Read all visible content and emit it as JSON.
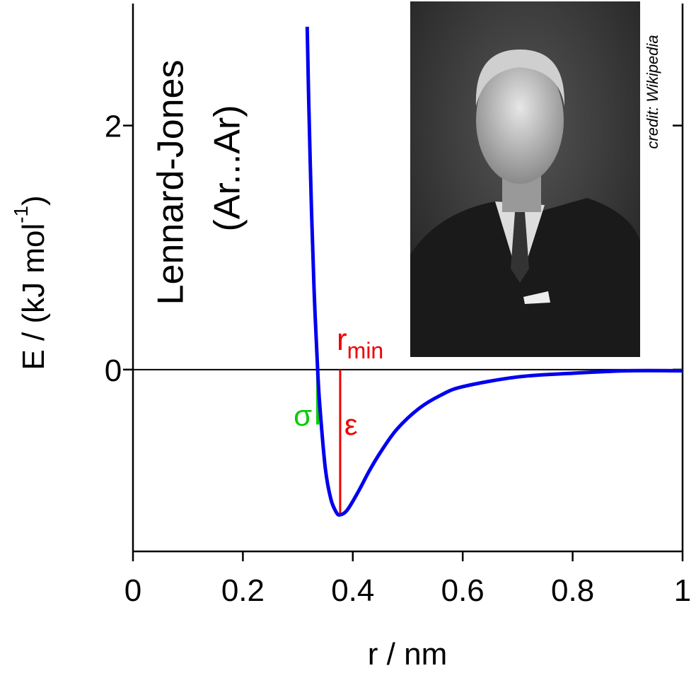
{
  "chart_data": {
    "type": "line",
    "title": [
      "Lennard-Jones",
      "(Ar...Ar)"
    ],
    "x_label": "r / nm",
    "y_label": {
      "text": "E / (kJ mol",
      "superscript": "-1",
      "close": ")"
    },
    "x": [
      0.317,
      0.32,
      0.325,
      0.33,
      0.336,
      0.34,
      0.35,
      0.36,
      0.37,
      0.377,
      0.39,
      0.41,
      0.43,
      0.45,
      0.48,
      0.52,
      0.56,
      0.6,
      0.7,
      0.8,
      0.9,
      1.0
    ],
    "values": [
      2.81,
      2.16,
      1.28,
      0.6,
      0,
      -0.3,
      -0.81,
      -1.06,
      -1.17,
      -1.19,
      -1.15,
      -1.0,
      -0.83,
      -0.68,
      -0.49,
      -0.32,
      -0.21,
      -0.14,
      -0.06,
      -0.03,
      -0.01,
      -0.01
    ],
    "color": "#0000ee",
    "xlim": [
      0,
      1
    ],
    "ylim": [
      -1.49,
      3.0
    ],
    "xticks": [
      0,
      0.2,
      0.4,
      0.6,
      0.8,
      1
    ],
    "yticks": [
      0,
      2
    ],
    "annotations": {
      "sigma": {
        "label": "σ",
        "x": 0.336,
        "y": [
          0,
          -0.45
        ],
        "color": "#00cc00"
      },
      "epsilon": {
        "label": "ε",
        "x": 0.377,
        "y": [
          0,
          -1.19
        ],
        "color": "#ee0000"
      },
      "r_min": {
        "label": "r",
        "subscript": "min",
        "color": "#ee0000"
      }
    },
    "credit": "credit: Wikipedia"
  }
}
